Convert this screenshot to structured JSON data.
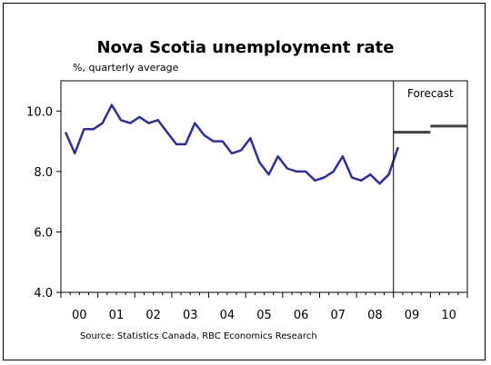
{
  "chart_data": {
    "type": "line",
    "title": "Nova Scotia unemployment rate",
    "subtitle": "%, quarterly average",
    "source": "Source: Statistics Canada, RBC Economics Research",
    "annotation": "Forecast",
    "ylim": [
      4.0,
      11.0
    ],
    "yticks": [
      "4.0",
      "6.0",
      "8.0",
      "10.0"
    ],
    "ytick_values": [
      4,
      6,
      8,
      10
    ],
    "xticks": [
      "00",
      "01",
      "02",
      "03",
      "04",
      "05",
      "06",
      "07",
      "08",
      "09",
      "10"
    ],
    "x_range": [
      "2000 Q1",
      "2010 Q4"
    ],
    "grid": false,
    "series": [
      {
        "color": "#2e2e9a",
        "x_quarter_index": [
          0,
          1,
          2,
          3,
          4,
          5,
          6,
          7,
          8,
          9,
          10,
          11,
          12,
          13,
          14,
          15,
          16,
          17,
          18,
          19,
          20,
          21,
          22,
          23,
          24,
          25,
          26,
          27,
          28,
          29,
          30,
          31,
          32,
          33,
          34,
          35,
          36
        ],
        "values": [
          9.3,
          8.6,
          9.4,
          9.4,
          9.6,
          10.2,
          9.7,
          9.6,
          9.8,
          9.6,
          9.7,
          9.3,
          8.9,
          8.9,
          9.6,
          9.2,
          9.0,
          9.0,
          8.6,
          8.7,
          9.1,
          8.3,
          7.9,
          8.5,
          8.1,
          8.0,
          8.0,
          7.7,
          7.8,
          8.0,
          8.5,
          7.8,
          7.7,
          7.9,
          7.6,
          7.9,
          8.8
        ]
      },
      {
        "color": "#404040",
        "style": "step",
        "segments": [
          {
            "from_quarter_index": 36,
            "to_quarter_index": 39,
            "value": 9.3
          },
          {
            "from_quarter_index": 40,
            "to_quarter_index": 43,
            "value": 9.5
          }
        ]
      }
    ],
    "forecast_start_quarter_index": 35.5
  }
}
